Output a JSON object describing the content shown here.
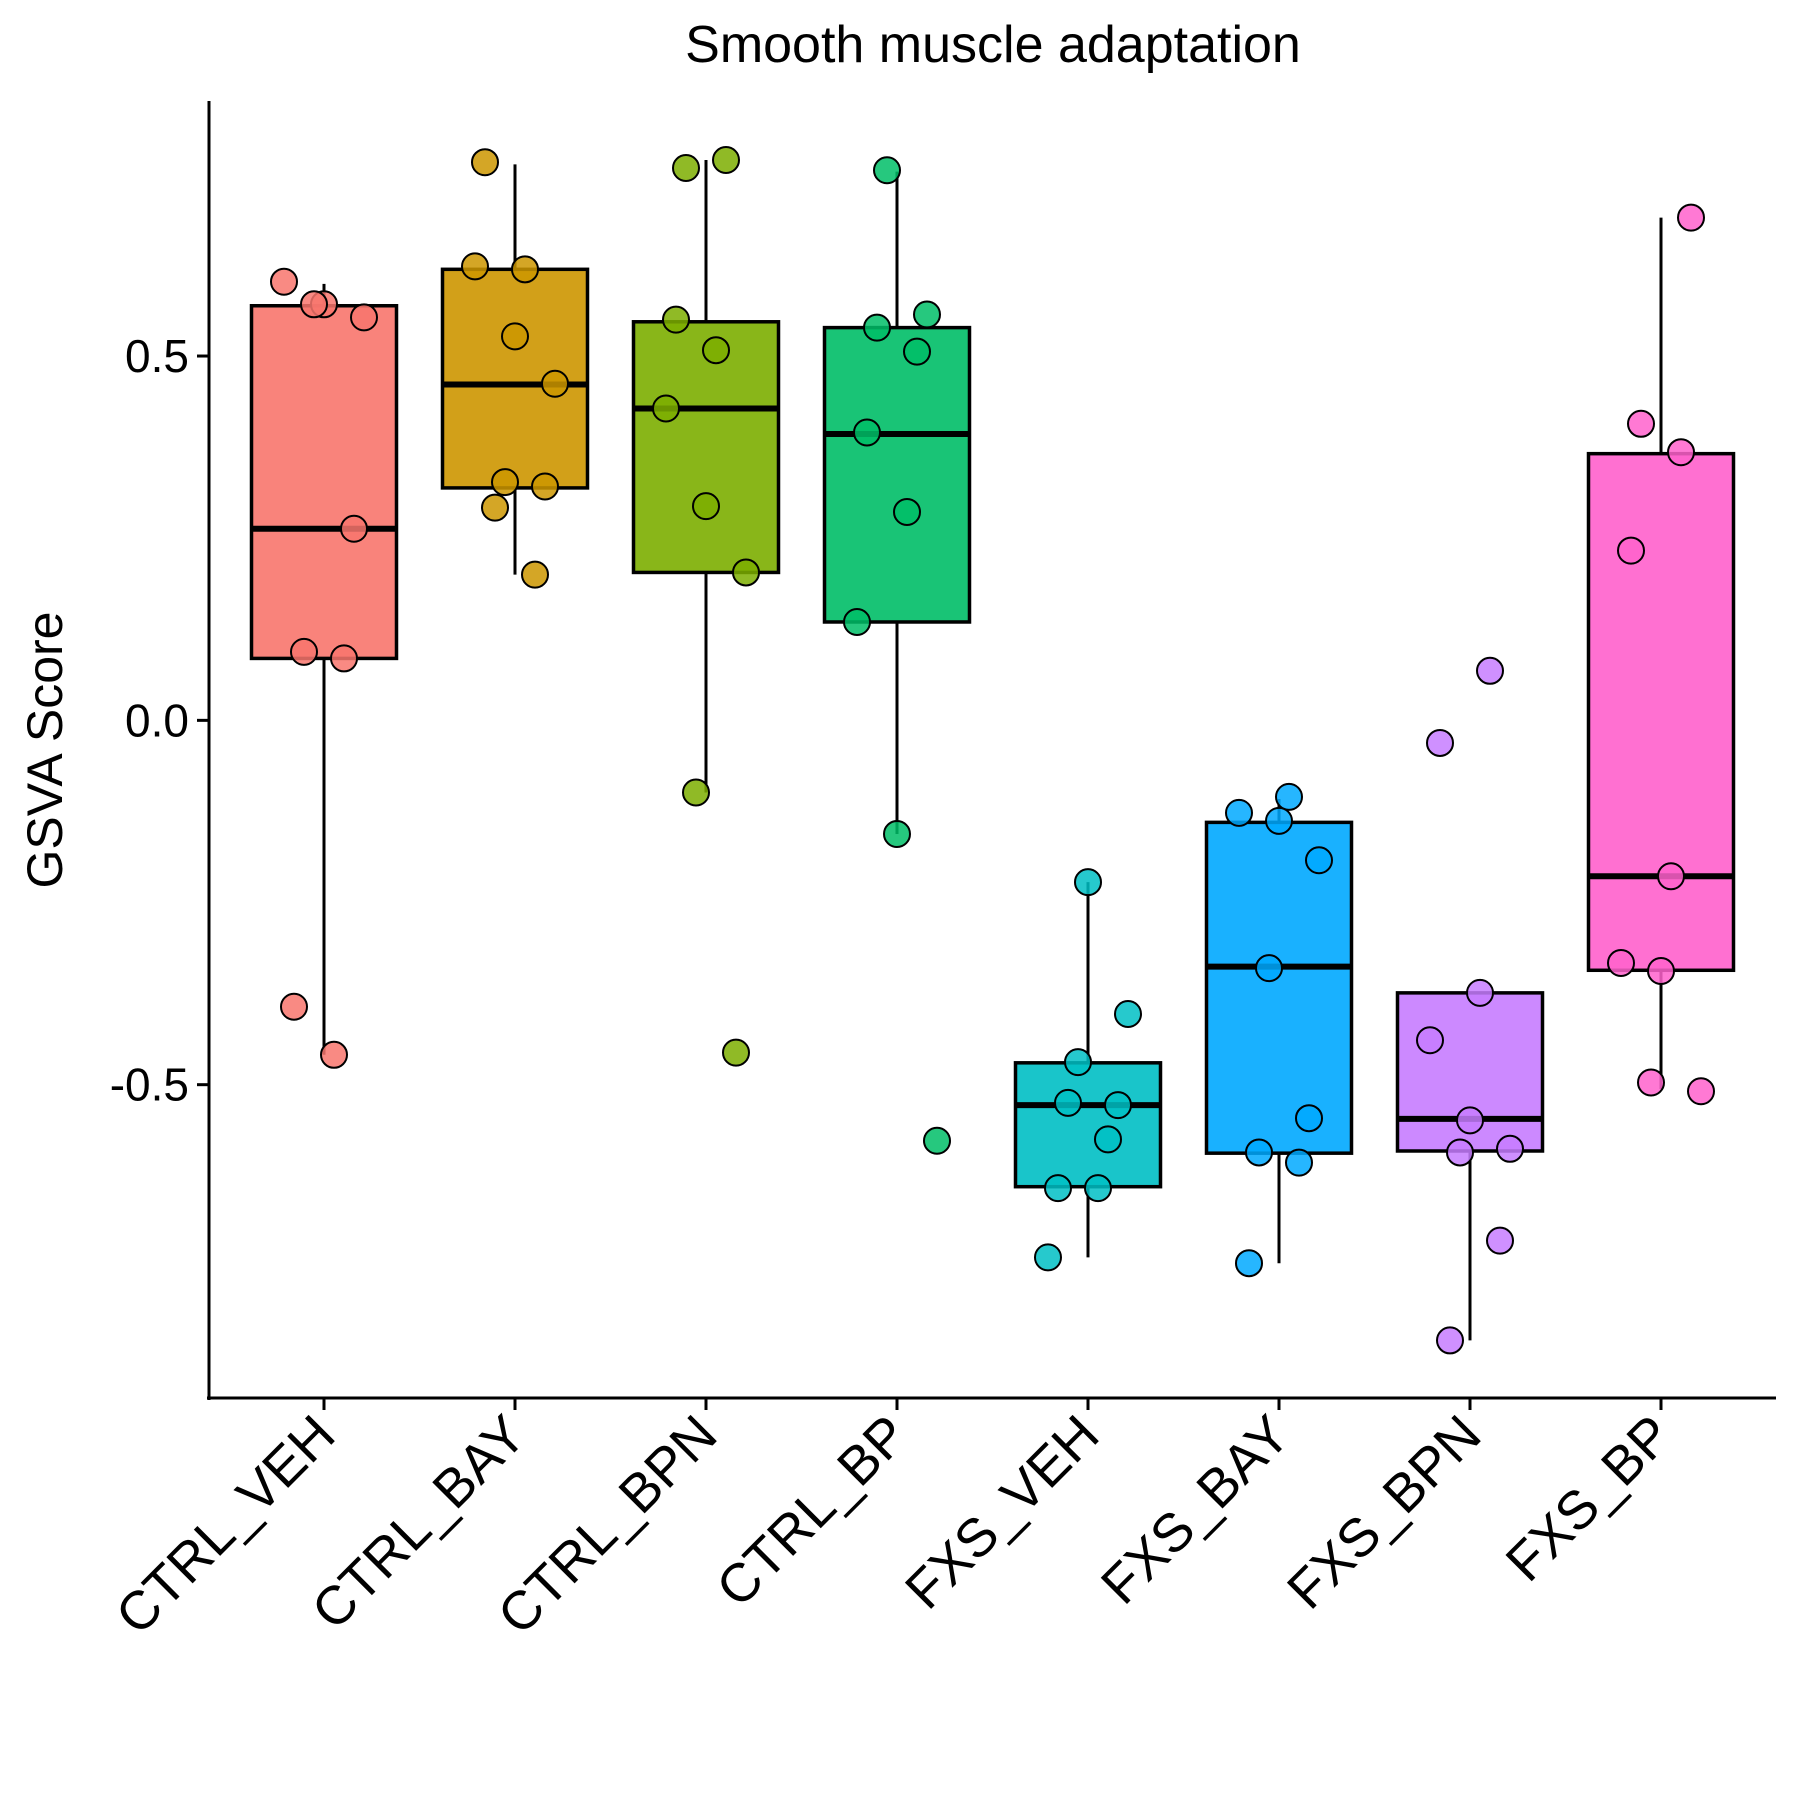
{
  "chart_data": {
    "type": "box",
    "title": "Smooth muscle adaptation",
    "y_label": "GSVA Score",
    "categories": [
      "CTRL_VEH",
      "CTRL_BAY",
      "CTRL_BPN",
      "CTRL_BP",
      "FXS_VEH",
      "FXS_BAY",
      "FXS_BPN",
      "FXS_BP"
    ],
    "colors": [
      "#F8766D",
      "#CD9600",
      "#7CAE00",
      "#00BE67",
      "#00BFC4",
      "#00A9FF",
      "#C77CFF",
      "#FF61CC"
    ],
    "boxes": [
      {
        "whisker_low": -0.459,
        "q1": 0.085,
        "median": 0.263,
        "q3": 0.569,
        "whisker_high": 0.599
      },
      {
        "whisker_low": 0.2,
        "q1": 0.319,
        "median": 0.461,
        "q3": 0.619,
        "whisker_high": 0.763
      },
      {
        "whisker_low": -0.099,
        "q1": 0.203,
        "median": 0.428,
        "q3": 0.547,
        "whisker_high": 0.769
      },
      {
        "whisker_low": -0.156,
        "q1": 0.135,
        "median": 0.393,
        "q3": 0.539,
        "whisker_high": 0.753
      },
      {
        "whisker_low": -0.737,
        "q1": -0.64,
        "median": -0.528,
        "q3": -0.47,
        "whisker_high": -0.222
      },
      {
        "whisker_low": -0.745,
        "q1": -0.594,
        "median": -0.338,
        "q3": -0.14,
        "whisker_high": -0.108
      },
      {
        "whisker_low": -0.851,
        "q1": -0.591,
        "median": -0.547,
        "q3": -0.374,
        "whisker_high": -0.374
      },
      {
        "whisker_low": -0.506,
        "q1": -0.343,
        "median": -0.214,
        "q3": 0.366,
        "whisker_high": 0.69
      }
    ],
    "points": [
      [
        0.602,
        0.571,
        0.553,
        0.571,
        0.263,
        0.094,
        0.085,
        -0.393,
        -0.459
      ],
      [
        0.766,
        0.619,
        0.623,
        0.527,
        0.462,
        0.327,
        0.321,
        0.292,
        0.2
      ],
      [
        0.758,
        0.769,
        0.55,
        0.508,
        0.428,
        0.294,
        0.203,
        -0.099,
        -0.456
      ],
      [
        0.755,
        0.557,
        0.539,
        0.506,
        0.395,
        0.286,
        0.135,
        -0.156,
        -0.577
      ],
      [
        -0.222,
        -0.403,
        -0.469,
        -0.528,
        -0.525,
        -0.575,
        -0.642,
        -0.642,
        -0.737
      ],
      [
        -0.105,
        -0.127,
        -0.138,
        -0.192,
        -0.34,
        -0.546,
        -0.593,
        -0.607,
        -0.745
      ],
      [
        0.068,
        -0.031,
        -0.374,
        -0.439,
        -0.549,
        -0.588,
        -0.593,
        -0.714,
        -0.851
      ],
      [
        0.69,
        0.407,
        0.368,
        0.233,
        -0.214,
        -0.333,
        -0.344,
        -0.509,
        -0.497
      ]
    ],
    "ylim": [
      -0.93,
      0.85
    ],
    "yticks": [
      -0.5,
      {
        "value": 0,
        "label": "0.0"
      },
      0.5
    ]
  }
}
